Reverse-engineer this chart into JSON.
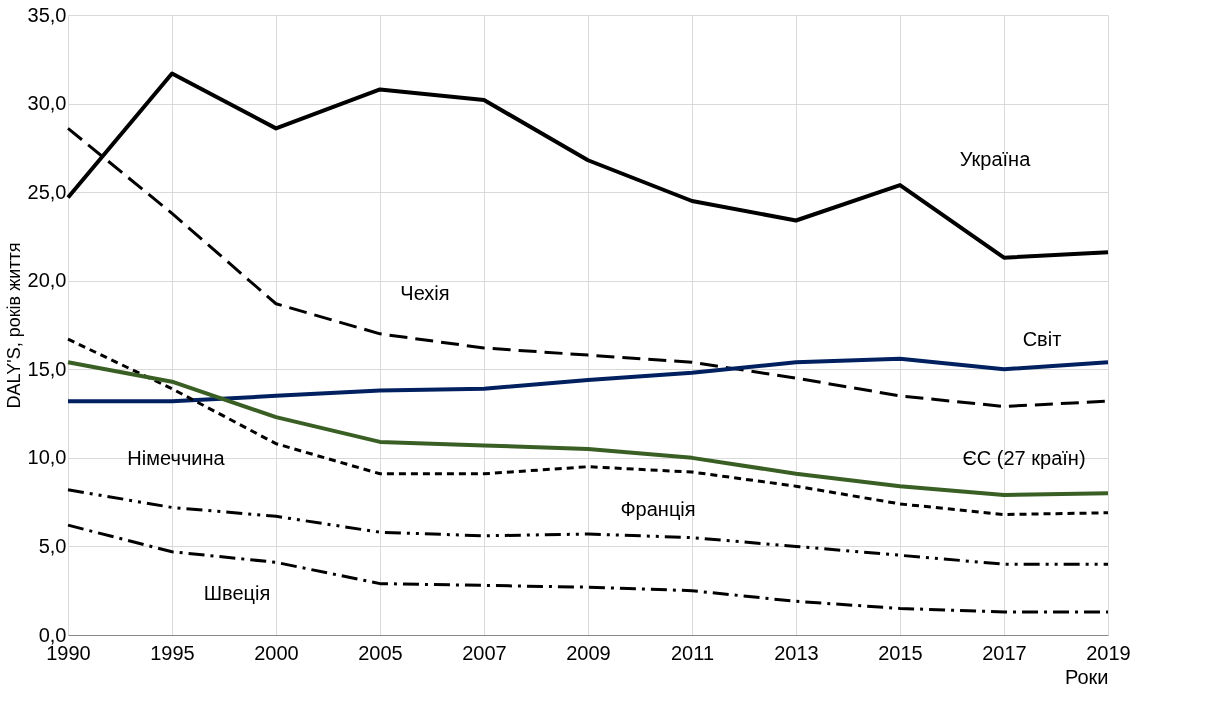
{
  "chart_data": {
    "type": "line",
    "xlabel": "Роки",
    "ylabel": "DALY'S, років життя",
    "categories": [
      "1990",
      "1995",
      "2000",
      "2005",
      "2007",
      "2009",
      "2011",
      "2013",
      "2015",
      "2017",
      "2019"
    ],
    "ylim": [
      0,
      35
    ],
    "yticks": [
      {
        "value": 0,
        "label": "0,0"
      },
      {
        "value": 5,
        "label": "5,0"
      },
      {
        "value": 10,
        "label": "10,0"
      },
      {
        "value": 15,
        "label": "15,0"
      },
      {
        "value": 20,
        "label": "20,0"
      },
      {
        "value": 25,
        "label": "25,0"
      },
      {
        "value": 30,
        "label": "30,0"
      },
      {
        "value": 35,
        "label": "35,0"
      }
    ],
    "grid": true,
    "legend": false,
    "marker": "none",
    "series": [
      {
        "name": "Україна",
        "color": "#000000",
        "line_style": "solid",
        "values": [
          24.7,
          31.7,
          28.6,
          30.8,
          30.2,
          26.8,
          24.5,
          23.4,
          25.4,
          21.3,
          21.6
        ]
      },
      {
        "name": "Чехія",
        "color": "#000000",
        "line_style": "dashed",
        "values": [
          28.6,
          23.8,
          18.7,
          17.0,
          16.2,
          15.8,
          15.4,
          14.5,
          13.5,
          12.9,
          13.2
        ]
      },
      {
        "name": "Світ",
        "color": "#002060",
        "line_style": "solid",
        "values": [
          13.2,
          13.2,
          13.5,
          13.8,
          13.9,
          14.4,
          14.8,
          15.4,
          15.6,
          15.0,
          15.4
        ]
      },
      {
        "name": "Німеччина",
        "color": "#000000",
        "line_style": "dotted",
        "values": [
          16.7,
          13.9,
          10.8,
          9.1,
          9.1,
          9.5,
          9.2,
          8.4,
          7.4,
          6.8,
          6.9
        ]
      },
      {
        "name": "ЄС (27 країн)",
        "color": "#3a5f24",
        "line_style": "solid",
        "values": [
          15.4,
          14.3,
          12.3,
          10.9,
          10.7,
          10.5,
          10.0,
          9.1,
          8.4,
          7.9,
          8.0
        ]
      },
      {
        "name": "Франція",
        "color": "#000000",
        "line_style": "dashdotdot",
        "values": [
          8.2,
          7.2,
          6.7,
          5.8,
          5.6,
          5.7,
          5.5,
          5.0,
          4.5,
          4.0,
          4.0
        ]
      },
      {
        "name": "Швеція",
        "color": "#000000",
        "line_style": "dashdot",
        "values": [
          6.2,
          4.7,
          4.1,
          2.9,
          2.8,
          2.7,
          2.5,
          1.9,
          1.5,
          1.3,
          1.3
        ]
      }
    ]
  }
}
